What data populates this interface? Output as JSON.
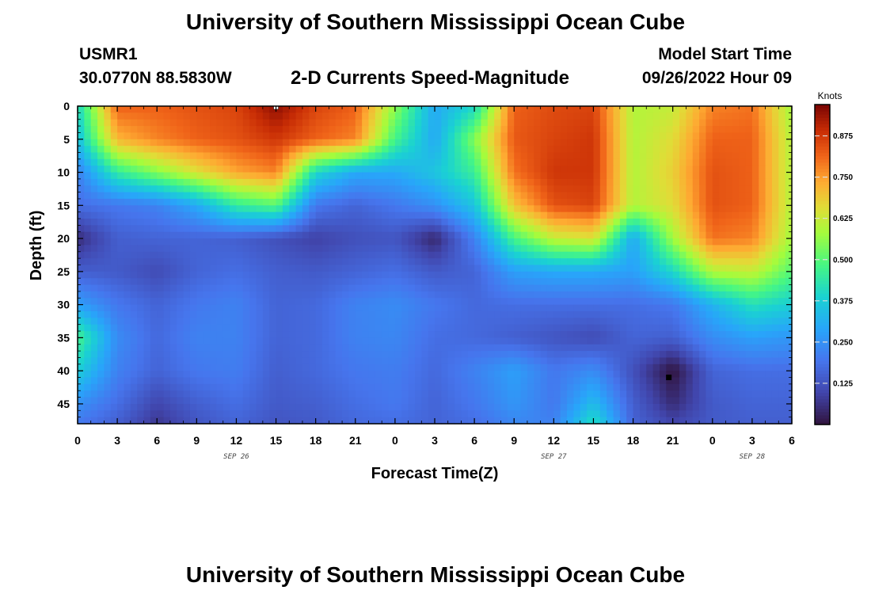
{
  "page": {
    "title": "University of Southern Mississippi Ocean Cube",
    "station_id": "USMR1",
    "coordinates": "30.0770N  88.5830W",
    "subtitle": "2-D Currents Speed-Magnitude",
    "model_label": "Model Start Time",
    "model_time": "09/26/2022 Hour 09",
    "second_title": "University of Southern Mississippi Ocean Cube"
  },
  "chart_data": {
    "type": "heatmap",
    "title": "2-D Currents Speed-Magnitude",
    "xlabel": "Forecast Time(Z)",
    "ylabel": "Depth (ft)",
    "colorbar_label": "Knots",
    "x_hours_from_start": [
      0,
      3,
      6,
      9,
      12,
      15,
      18,
      21,
      24,
      27,
      30,
      33,
      36,
      39,
      42,
      45,
      48,
      51,
      54
    ],
    "x_tick_labels": [
      "0",
      "3",
      "6",
      "9",
      "12",
      "15",
      "18",
      "21",
      "0",
      "3",
      "6",
      "9",
      "12",
      "15",
      "18",
      "21",
      "0",
      "3",
      "6"
    ],
    "date_labels": [
      {
        "text": "SEP 26",
        "at_hour": 12
      },
      {
        "text": "SEP 27",
        "at_hour": 36
      },
      {
        "text": "SEP 28",
        "at_hour": 51
      }
    ],
    "y_ticks": [
      0,
      5,
      10,
      15,
      20,
      25,
      30,
      35,
      40,
      45
    ],
    "y_range": [
      0,
      48
    ],
    "color_ticks": [
      0.125,
      0.25,
      0.375,
      0.5,
      0.625,
      0.75,
      0.875
    ],
    "color_tick_labels": [
      "0.125",
      "0.250",
      "0.375",
      "0.500",
      "0.625",
      "0.750",
      "0.875"
    ],
    "color_range": [
      0.0,
      0.97
    ],
    "colormap": "turbo",
    "depths_ft": [
      0,
      5,
      10,
      15,
      20,
      25,
      30,
      35,
      40,
      45,
      48
    ],
    "grid_values": [
      [
        0.4,
        0.82,
        0.82,
        0.84,
        0.86,
        0.95,
        0.86,
        0.82,
        0.56,
        0.3,
        0.4,
        0.82,
        0.85,
        0.86,
        0.6,
        0.62,
        0.78,
        0.8,
        0.58
      ],
      [
        0.35,
        0.72,
        0.78,
        0.82,
        0.84,
        0.88,
        0.82,
        0.78,
        0.48,
        0.3,
        0.55,
        0.83,
        0.86,
        0.88,
        0.6,
        0.66,
        0.82,
        0.82,
        0.6
      ],
      [
        0.22,
        0.45,
        0.55,
        0.65,
        0.74,
        0.78,
        0.4,
        0.3,
        0.3,
        0.36,
        0.46,
        0.8,
        0.88,
        0.88,
        0.6,
        0.68,
        0.84,
        0.82,
        0.6
      ],
      [
        0.18,
        0.2,
        0.22,
        0.3,
        0.45,
        0.5,
        0.2,
        0.16,
        0.2,
        0.25,
        0.36,
        0.7,
        0.84,
        0.86,
        0.6,
        0.66,
        0.84,
        0.82,
        0.6
      ],
      [
        0.05,
        0.15,
        0.16,
        0.16,
        0.15,
        0.12,
        0.09,
        0.12,
        0.13,
        0.04,
        0.22,
        0.48,
        0.62,
        0.65,
        0.3,
        0.58,
        0.8,
        0.78,
        0.58
      ],
      [
        0.15,
        0.14,
        0.11,
        0.16,
        0.18,
        0.15,
        0.14,
        0.16,
        0.18,
        0.14,
        0.16,
        0.28,
        0.3,
        0.3,
        0.28,
        0.4,
        0.6,
        0.62,
        0.5
      ],
      [
        0.28,
        0.2,
        0.16,
        0.2,
        0.22,
        0.16,
        0.17,
        0.22,
        0.24,
        0.2,
        0.17,
        0.18,
        0.18,
        0.18,
        0.18,
        0.2,
        0.32,
        0.42,
        0.38
      ],
      [
        0.48,
        0.24,
        0.17,
        0.22,
        0.22,
        0.16,
        0.17,
        0.22,
        0.23,
        0.18,
        0.17,
        0.15,
        0.13,
        0.11,
        0.16,
        0.15,
        0.24,
        0.28,
        0.26
      ],
      [
        0.38,
        0.22,
        0.16,
        0.2,
        0.21,
        0.15,
        0.17,
        0.2,
        0.21,
        0.17,
        0.22,
        0.28,
        0.2,
        0.24,
        0.12,
        0.0,
        0.16,
        0.18,
        0.18
      ],
      [
        0.25,
        0.18,
        0.1,
        0.15,
        0.18,
        0.14,
        0.15,
        0.18,
        0.2,
        0.16,
        0.2,
        0.26,
        0.2,
        0.34,
        0.15,
        0.05,
        0.14,
        0.16,
        0.16
      ],
      [
        0.2,
        0.15,
        0.07,
        0.13,
        0.16,
        0.13,
        0.14,
        0.17,
        0.18,
        0.16,
        0.18,
        0.23,
        0.22,
        0.42,
        0.16,
        0.1,
        0.14,
        0.15,
        0.15
      ]
    ]
  }
}
